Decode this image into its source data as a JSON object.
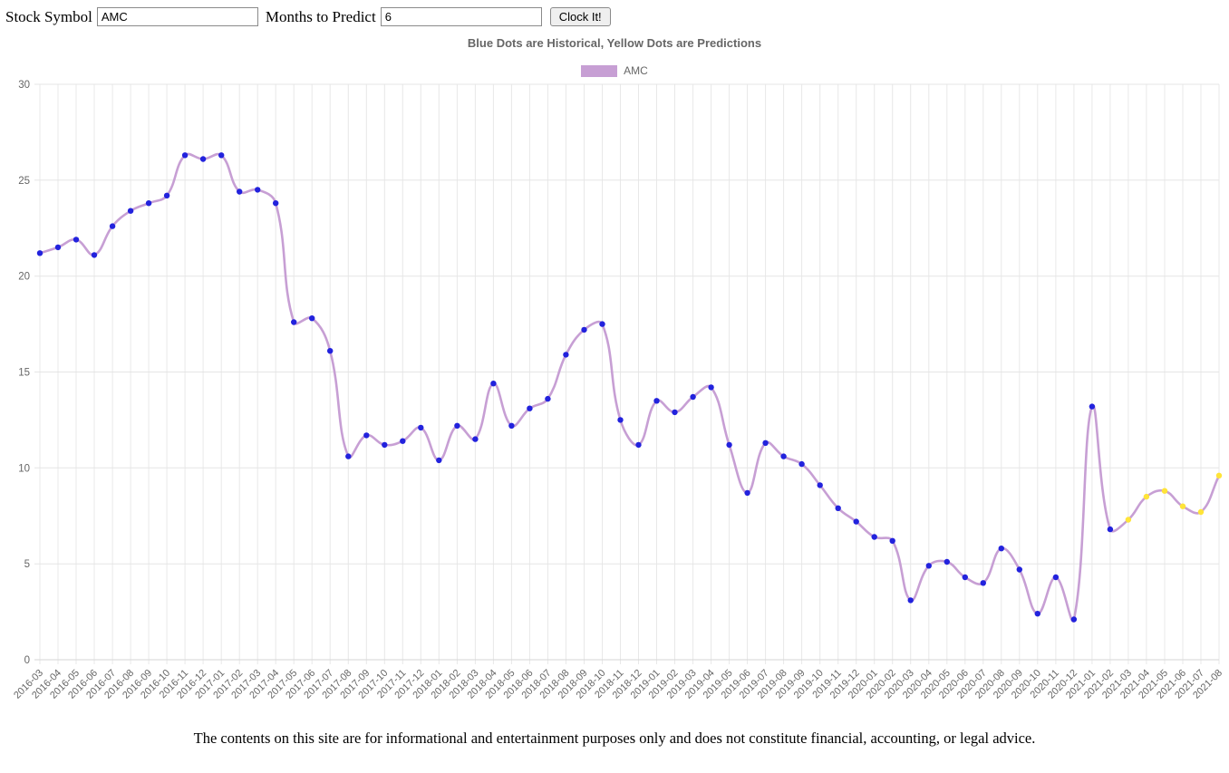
{
  "form": {
    "stock_symbol_label": "Stock Symbol",
    "stock_symbol_value": "AMC",
    "months_label": "Months to Predict",
    "months_value": "6",
    "button_label": "Clock It!"
  },
  "chart_data": {
    "type": "line",
    "title": "Blue Dots are Historical, Yellow Dots are Predictions",
    "series_name": "AMC",
    "legend_entries": [
      "AMC"
    ],
    "x": [
      "2016-03",
      "2016-04",
      "2016-05",
      "2016-06",
      "2016-07",
      "2016-08",
      "2016-09",
      "2016-10",
      "2016-11",
      "2016-12",
      "2017-01",
      "2017-02",
      "2017-03",
      "2017-04",
      "2017-05",
      "2017-06",
      "2017-07",
      "2017-08",
      "2017-09",
      "2017-10",
      "2017-11",
      "2017-12",
      "2018-01",
      "2018-02",
      "2018-03",
      "2018-04",
      "2018-05",
      "2018-06",
      "2018-07",
      "2018-08",
      "2018-09",
      "2018-10",
      "2018-11",
      "2018-12",
      "2019-01",
      "2019-02",
      "2019-03",
      "2019-04",
      "2019-05",
      "2019-06",
      "2019-07",
      "2019-08",
      "2019-09",
      "2019-10",
      "2019-11",
      "2019-12",
      "2020-01",
      "2020-02",
      "2020-03",
      "2020-04",
      "2020-05",
      "2020-06",
      "2020-07",
      "2020-08",
      "2020-09",
      "2020-10",
      "2020-11",
      "2020-12",
      "2021-01",
      "2021-02",
      "2021-03",
      "2021-04",
      "2021-05",
      "2021-06",
      "2021-07",
      "2021-08"
    ],
    "values": [
      21.2,
      21.5,
      21.9,
      21.1,
      22.6,
      23.4,
      23.8,
      24.2,
      26.3,
      26.1,
      26.3,
      24.4,
      24.5,
      23.8,
      17.6,
      17.8,
      16.1,
      10.6,
      11.7,
      11.2,
      11.4,
      12.1,
      10.4,
      12.2,
      11.5,
      14.4,
      12.2,
      13.1,
      13.6,
      15.9,
      17.2,
      17.5,
      12.5,
      11.2,
      13.5,
      12.9,
      13.7,
      14.2,
      11.2,
      8.7,
      11.3,
      10.6,
      10.2,
      9.1,
      7.9,
      7.2,
      6.4,
      6.2,
      3.1,
      4.9,
      5.1,
      4.3,
      4.0,
      5.8,
      4.7,
      2.4,
      4.3,
      2.1,
      13.2,
      6.8,
      7.3,
      8.5,
      8.8,
      8.0,
      7.7,
      9.6
    ],
    "historical_count": 60,
    "prediction_count": 6,
    "ylim": [
      0,
      30
    ],
    "yticks": [
      0,
      5,
      10,
      15,
      20,
      25,
      30
    ],
    "grid": true,
    "legend_position": "top",
    "xlabel": "",
    "ylabel": "",
    "line_color": "#c79fd4",
    "historical_dot_color": "#2222dd",
    "prediction_dot_color": "#ffe438",
    "tick_label_color": "#666666"
  },
  "footer": {
    "disclaimer": "The contents on this site are for informational and entertainment purposes only and does not constitute financial, accounting, or legal advice."
  }
}
